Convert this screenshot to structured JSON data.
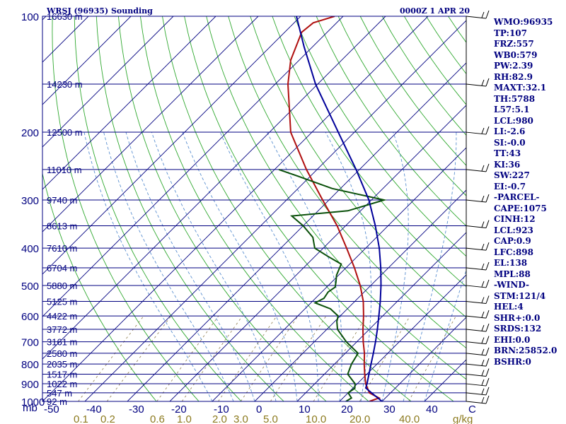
{
  "header": {
    "station": "WRSJ (96935) Sounding",
    "time": "0000Z  1 APR 20"
  },
  "colors": {
    "frame": "#000080",
    "isotherm": "#000080",
    "dry_adiabat": "#2fa82f",
    "moist_adiabat": "#5a8fd0",
    "mixing_ratio": "#8c7a4a",
    "temperature": "#b01010",
    "dewpoint": "#0a500a",
    "parcel": "#00009a",
    "tick_label": "#000080",
    "mixing_label": "#8c7a1e"
  },
  "indices": [
    "WMO:96935",
    "TP:107",
    "FRZ:557",
    "WB0:579",
    "PW:2.39",
    "RH:82.9",
    "MAXT:32.1",
    "TH:5788",
    "L57:5.1",
    "LCL:980",
    "LI:-2.6",
    "SI:-0.0",
    "TT:43",
    "KI:36",
    "SW:227",
    "EI:-0.7",
    "-PARCEL-",
    "CAPE:1075",
    "CINH:12",
    "LCL:923",
    "CAP:0.9",
    "LFC:898",
    "EL:138",
    "MPL:88",
    "-WIND-",
    "STM:121/4",
    "HEL:4",
    "SHR+:0.0",
    "SRDS:132",
    "EHI:0.0",
    "BRN:25852.0",
    "BSHR:0"
  ],
  "chart_data": {
    "type": "line",
    "chart_kind": "skew-T log-P",
    "title": "WRSJ (96935) Sounding",
    "subtitle": "0000Z  1 APR 20",
    "y_scale": "log",
    "y_axis_unit": "mb",
    "ylim": [
      1000,
      100
    ],
    "xlim": [
      -50,
      50
    ],
    "x_tick_labels": [
      "-50",
      "-40",
      "-30",
      "-20",
      "-10",
      "0",
      "10",
      "20",
      "30",
      "40",
      "C"
    ],
    "pressure_ticks": [
      "100",
      "200",
      "300",
      "400",
      "500",
      "600",
      "700",
      "800",
      "900",
      "1000"
    ],
    "height_labels": [
      {
        "p": 100,
        "label": "16630 m"
      },
      {
        "p": 150,
        "label": "14230 m"
      },
      {
        "p": 200,
        "label": "12500 m"
      },
      {
        "p": 250,
        "label": "11010 m"
      },
      {
        "p": 300,
        "label": "9740 m"
      },
      {
        "p": 350,
        "label": "8613 m"
      },
      {
        "p": 400,
        "label": "7610 m"
      },
      {
        "p": 450,
        "label": "6704 m"
      },
      {
        "p": 500,
        "label": "5880 m"
      },
      {
        "p": 550,
        "label": "5125 m"
      },
      {
        "p": 600,
        "label": "4422 m"
      },
      {
        "p": 650,
        "label": "3772 m"
      },
      {
        "p": 700,
        "label": "3161 m"
      },
      {
        "p": 750,
        "label": "2580 m"
      },
      {
        "p": 800,
        "label": "2035 m"
      },
      {
        "p": 850,
        "label": "1517 m"
      },
      {
        "p": 900,
        "label": "1022 m"
      },
      {
        "p": 950,
        "label": "547 m"
      },
      {
        "p": 1000,
        "label": "92 m"
      }
    ],
    "mixing_ratio_labels": [
      "0.1",
      "0.2",
      "0.6",
      "1.0",
      "2.0",
      "3.0",
      "5.0",
      "10.0",
      "20.0",
      "40.0",
      "g/kg"
    ],
    "mixing_ratio_values": [
      0.1,
      0.2,
      0.6,
      1.0,
      2.0,
      3.0,
      5.0,
      10.0,
      20.0,
      40.0
    ],
    "series": [
      {
        "name": "Temperature",
        "points": [
          [
            1000,
            27.0
          ],
          [
            980,
            28.5
          ],
          [
            950,
            25.0
          ],
          [
            925,
            23.5
          ],
          [
            900,
            22.0
          ],
          [
            850,
            19.5
          ],
          [
            800,
            17.0
          ],
          [
            750,
            14.5
          ],
          [
            700,
            11.5
          ],
          [
            650,
            8.5
          ],
          [
            600,
            5.5
          ],
          [
            550,
            2.0
          ],
          [
            500,
            -2.5
          ],
          [
            450,
            -8.0
          ],
          [
            400,
            -14.5
          ],
          [
            350,
            -22.0
          ],
          [
            300,
            -31.5
          ],
          [
            250,
            -42.5
          ],
          [
            200,
            -55.0
          ],
          [
            150,
            -67.0
          ],
          [
            130,
            -72.0
          ],
          [
            110,
            -76.0
          ],
          [
            104,
            -75.5
          ],
          [
            100,
            -72.0
          ]
        ]
      },
      {
        "name": "Dewpoint",
        "points": [
          [
            1000,
            21.5
          ],
          [
            980,
            22.0
          ],
          [
            950,
            20.0
          ],
          [
            925,
            20.5
          ],
          [
            900,
            19.5
          ],
          [
            850,
            15.5
          ],
          [
            800,
            14.0
          ],
          [
            750,
            13.0
          ],
          [
            700,
            7.5
          ],
          [
            650,
            2.5
          ],
          [
            620,
            0.5
          ],
          [
            600,
            -0.5
          ],
          [
            575,
            -4.0
          ],
          [
            555,
            -9.0
          ],
          [
            540,
            -8.0
          ],
          [
            520,
            -8.5
          ],
          [
            505,
            -8.0
          ],
          [
            490,
            -9.0
          ],
          [
            470,
            -10.5
          ],
          [
            440,
            -12.0
          ],
          [
            420,
            -17.0
          ],
          [
            400,
            -22.0
          ],
          [
            375,
            -25.0
          ],
          [
            350,
            -30.0
          ],
          [
            330,
            -35.0
          ],
          [
            320,
            -23.0
          ],
          [
            300,
            -17.0
          ],
          [
            280,
            -32.0
          ],
          [
            260,
            -43.0
          ],
          [
            250,
            -49.0
          ]
        ]
      },
      {
        "name": "Parcel",
        "points": [
          [
            1000,
            30.0
          ],
          [
            950,
            25.5
          ],
          [
            923,
            23.0
          ],
          [
            900,
            22.3
          ],
          [
            850,
            20.5
          ],
          [
            800,
            18.6
          ],
          [
            750,
            16.6
          ],
          [
            700,
            14.4
          ],
          [
            650,
            11.9
          ],
          [
            600,
            9.1
          ],
          [
            550,
            6.0
          ],
          [
            500,
            2.4
          ],
          [
            450,
            -1.8
          ],
          [
            400,
            -6.8
          ],
          [
            350,
            -13.0
          ],
          [
            300,
            -20.6
          ],
          [
            250,
            -30.8
          ],
          [
            200,
            -43.8
          ],
          [
            150,
            -60.5
          ],
          [
            120,
            -72.0
          ],
          [
            100,
            -81.0
          ]
        ]
      }
    ],
    "wind_barbs_pressures": [
      100,
      150,
      200,
      250,
      300,
      350,
      400,
      450,
      500,
      550,
      600,
      650,
      700,
      750,
      800,
      850,
      900,
      950,
      1000
    ]
  }
}
